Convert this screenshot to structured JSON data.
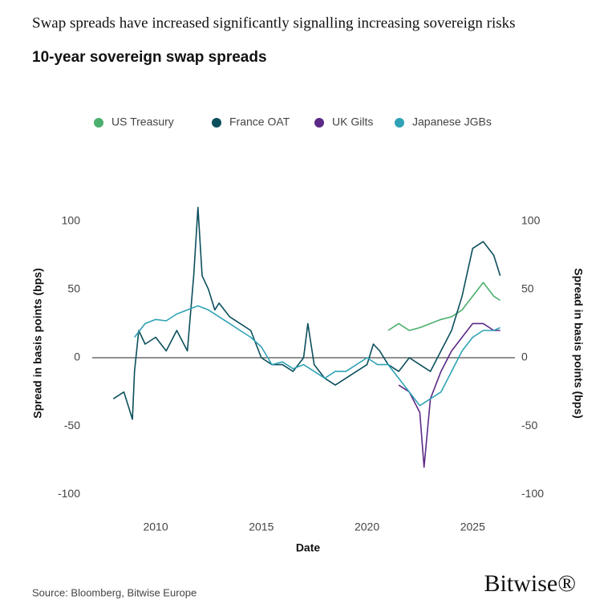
{
  "chart_data": {
    "type": "line",
    "title": "Swap spreads have increased significantly signalling increasing sovereign risks",
    "subtitle": "10-year sovereign swap spreads",
    "xlabel": "Date",
    "ylabel": "Spread in basis points (bps)",
    "y2label": "Spread in basis points (bps)",
    "source": "Source: Bloomberg, Bitwise Europe",
    "logo": "Bitwise®",
    "xlim": [
      2007,
      2027
    ],
    "xticks": [
      2010,
      2015,
      2020,
      2025
    ],
    "ylim": [
      -105,
      125
    ],
    "yticks": [
      -100,
      -50,
      0,
      50,
      100
    ],
    "y2lim": [
      -105,
      125
    ],
    "y2ticks": [
      -100,
      -50,
      0,
      50,
      100
    ],
    "zero_line": true,
    "legend": "top",
    "series": [
      {
        "name": "US Treasury",
        "color": "#4caf6e",
        "x": [
          2021,
          2021.5,
          2022,
          2022.5,
          2023,
          2023.5,
          2024,
          2024.5,
          2025,
          2025.5,
          2026,
          2026.3
        ],
        "values": [
          20,
          25,
          20,
          22,
          25,
          28,
          30,
          35,
          45,
          55,
          45,
          42
        ]
      },
      {
        "name": "France OAT",
        "color": "#0b4f5c",
        "x": [
          2008,
          2008.5,
          2008.9,
          2009,
          2009.2,
          2009.5,
          2010,
          2010.5,
          2011,
          2011.5,
          2011.8,
          2012,
          2012.2,
          2012.5,
          2012.8,
          2013,
          2013.5,
          2014,
          2014.5,
          2015,
          2015.5,
          2016,
          2016.5,
          2017,
          2017.2,
          2017.5,
          2018,
          2018.5,
          2019,
          2019.5,
          2020,
          2020.3,
          2020.6,
          2021,
          2021.5,
          2022,
          2022.5,
          2023,
          2023.5,
          2024,
          2024.5,
          2025,
          2025.5,
          2026,
          2026.3
        ],
        "values": [
          -30,
          -25,
          -45,
          -10,
          20,
          10,
          15,
          5,
          20,
          5,
          60,
          110,
          60,
          50,
          35,
          40,
          30,
          25,
          20,
          0,
          -5,
          -5,
          -10,
          0,
          25,
          -5,
          -15,
          -20,
          -15,
          -10,
          -5,
          10,
          5,
          -5,
          -10,
          0,
          -5,
          -10,
          5,
          20,
          45,
          80,
          85,
          75,
          60
        ]
      },
      {
        "name": "UK Gilts",
        "color": "#5b2a86",
        "x": [
          2021.5,
          2022,
          2022.5,
          2022.7,
          2023,
          2023.5,
          2024,
          2024.5,
          2025,
          2025.5,
          2026,
          2026.3
        ],
        "values": [
          -20,
          -25,
          -40,
          -80,
          -30,
          -10,
          5,
          15,
          25,
          25,
          20,
          20
        ]
      },
      {
        "name": "Japanese JGBs",
        "color": "#2fa3b5",
        "x": [
          2009,
          2009.5,
          2010,
          2010.5,
          2011,
          2011.5,
          2012,
          2012.5,
          2013,
          2013.5,
          2014,
          2014.5,
          2015,
          2015.5,
          2016,
          2016.5,
          2017,
          2017.5,
          2018,
          2018.5,
          2019,
          2019.5,
          2020,
          2020.5,
          2021,
          2021.5,
          2022,
          2022.5,
          2023,
          2023.5,
          2024,
          2024.5,
          2025,
          2025.5,
          2026,
          2026.3
        ],
        "values": [
          15,
          25,
          28,
          27,
          32,
          35,
          38,
          35,
          30,
          25,
          20,
          15,
          8,
          -5,
          -3,
          -8,
          -5,
          -10,
          -15,
          -10,
          -10,
          -5,
          0,
          -5,
          -5,
          -15,
          -25,
          -35,
          -30,
          -25,
          -10,
          5,
          15,
          20,
          20,
          22
        ]
      }
    ]
  }
}
